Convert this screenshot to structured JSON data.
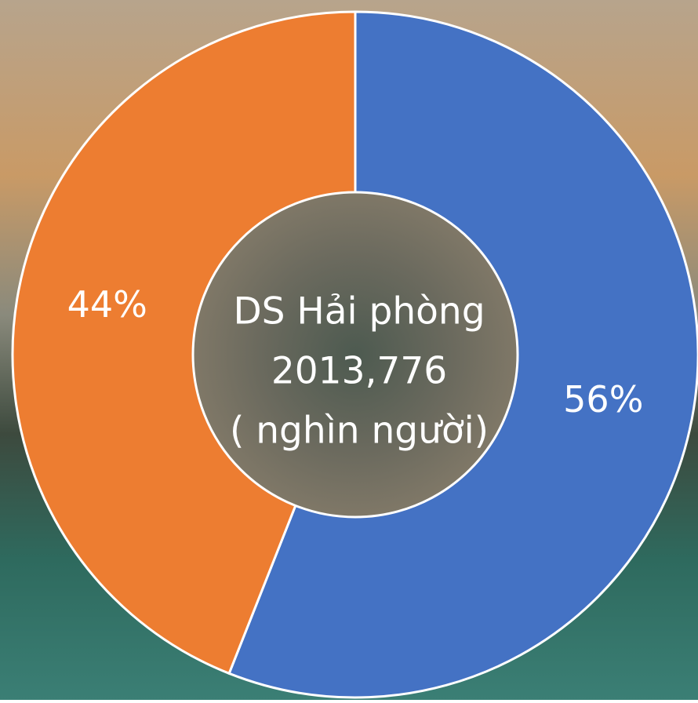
{
  "chart_data": {
    "type": "donut",
    "values": [
      56,
      44
    ],
    "value_labels": [
      "56%",
      "44%"
    ],
    "colors": [
      "#4472c4",
      "#ed7d31"
    ],
    "center_text": [
      "DS Hải phòng",
      "2013,776",
      "( nghìn người)"
    ]
  }
}
